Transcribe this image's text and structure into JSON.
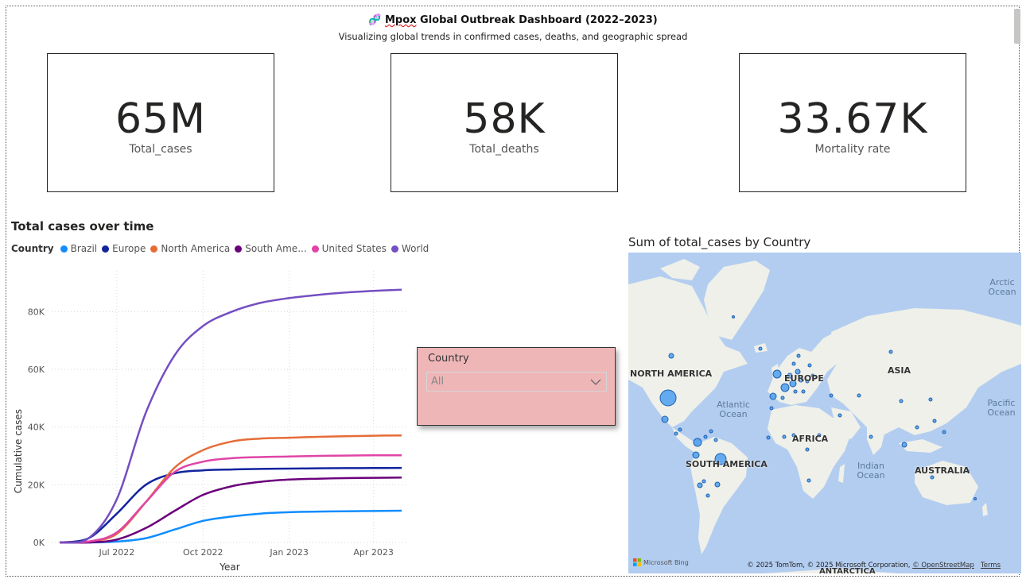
{
  "header": {
    "icon": "🧬",
    "title_prefix": "Mpox",
    "title_rest": " Global Outbreak Dashboard (2022–2023)",
    "subtitle": "Visualizing global trends in confirmed cases, deaths, and geographic spread"
  },
  "kpis": [
    {
      "value": "65M",
      "label": "Total_cases"
    },
    {
      "value": "58K",
      "label": "Total_deaths"
    },
    {
      "value": "33.67K",
      "label": "Mortality rate"
    }
  ],
  "line_chart": {
    "title": "Total cases over time",
    "legend_title": "Country"
  },
  "slicer": {
    "title": "Country",
    "selected": "All"
  },
  "map": {
    "title": "Sum of total_cases by Country",
    "labels": {
      "na": "NORTH AMERICA",
      "sa": "SOUTH AMERICA",
      "eu": "EUROPE",
      "af": "AFRICA",
      "as": "ASIA",
      "au": "AUSTRALIA",
      "an": "ANTARCTICA"
    },
    "oceans": {
      "arctic": "Arctic Ocean",
      "atlantic": "Atlantic Ocean",
      "indian": "Indian Ocean",
      "pacific": "Pacific Ocean"
    },
    "attribution_text": "© 2025 TomTom, © 2025 Microsoft Corporation, ",
    "attribution_link": "© OpenStreetMap",
    "terms": "Terms",
    "bing": "Microsoft Bing"
  },
  "chart_data": {
    "type": "line",
    "title": "Total cases over time",
    "xlabel": "Year",
    "ylabel": "Cumulative cases",
    "x_ticks": [
      "Jul 2022",
      "Oct 2022",
      "Jan 2023",
      "Apr 2023"
    ],
    "y_ticks": [
      "0K",
      "20K",
      "40K",
      "60K",
      "80K"
    ],
    "ylim": [
      0,
      90000
    ],
    "grid": true,
    "legend": "top",
    "x": [
      "2022-05-01",
      "2022-06-01",
      "2022-07-01",
      "2022-08-01",
      "2022-09-01",
      "2022-10-01",
      "2022-11-01",
      "2022-12-01",
      "2023-01-01",
      "2023-02-01",
      "2023-03-01",
      "2023-04-01",
      "2023-05-01"
    ],
    "series": [
      {
        "name": "Brazil",
        "color": "#118DFF",
        "values": [
          0,
          0,
          300,
          1500,
          4500,
          7500,
          9000,
          10000,
          10500,
          10700,
          10800,
          10900,
          11000
        ]
      },
      {
        "name": "Europe",
        "color": "#12239E",
        "values": [
          0,
          1500,
          10000,
          20000,
          24000,
          25000,
          25300,
          25500,
          25600,
          25700,
          25750,
          25800,
          25850
        ]
      },
      {
        "name": "North America",
        "color": "#E66C37",
        "values": [
          0,
          300,
          3000,
          14000,
          26000,
          32000,
          35000,
          36000,
          36300,
          36600,
          36800,
          37000,
          37100
        ]
      },
      {
        "name": "South Ame...",
        "color": "#6B007B",
        "values": [
          0,
          0,
          1000,
          5000,
          11000,
          16500,
          19500,
          21000,
          21800,
          22100,
          22300,
          22400,
          22500
        ]
      },
      {
        "name": "United States",
        "color": "#E044A7",
        "values": [
          0,
          300,
          3500,
          14000,
          24500,
          28000,
          29200,
          29600,
          29800,
          30000,
          30100,
          30200,
          30200
        ]
      },
      {
        "name": "World",
        "color": "#744EC2",
        "values": [
          0,
          1500,
          15000,
          45000,
          65000,
          75000,
          80000,
          83000,
          84700,
          85800,
          86600,
          87200,
          87600
        ]
      }
    ]
  }
}
